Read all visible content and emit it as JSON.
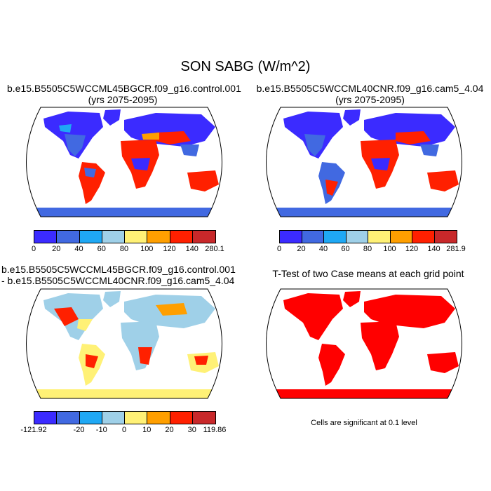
{
  "title": "SON SABG (W/m^2)",
  "panels": [
    {
      "title_line1": "b.e15.B5505C5WCCML45BGCR.f09_g16.control.001",
      "title_line2": "(yrs 2075-2095)",
      "colorbar": {
        "colors": [
          "#3b2bff",
          "#4169e1",
          "#1fa8f4",
          "#9fd0e8",
          "#fff176",
          "#ff9f00",
          "#ff2000",
          "#c8282a"
        ],
        "ticks": [
          "0",
          "20",
          "40",
          "60",
          "80",
          "100",
          "120",
          "140",
          "280.1"
        ]
      }
    },
    {
      "title_line1": "b.e15.B5505C5WCCML40CNR.f09_g16.cam5_4.04",
      "title_line2": "(yrs 2075-2095)",
      "colorbar": {
        "colors": [
          "#3b2bff",
          "#4169e1",
          "#1fa8f4",
          "#9fd0e8",
          "#fff176",
          "#ff9f00",
          "#ff2000",
          "#c8282a"
        ],
        "ticks": [
          "0",
          "20",
          "40",
          "60",
          "80",
          "100",
          "120",
          "140",
          "281.9"
        ]
      }
    },
    {
      "title_line1": "b.e15.B5505C5WCCML45BGCR.f09_g16.control.001",
      "title_line2": "- b.e15.B5505C5WCCML40CNR.f09_g16.cam5_4.04",
      "colorbar": {
        "colors": [
          "#3b2bff",
          "#4169e1",
          "#1fa8f4",
          "#9fd0e8",
          "#fff176",
          "#ff9f00",
          "#ff2000",
          "#c8282a"
        ],
        "ticks": [
          "-121.92",
          "",
          "-20",
          "-10",
          "0",
          "10",
          "20",
          "30",
          "119.86"
        ]
      }
    },
    {
      "title_line1": "T-Test of two Case means at each grid point",
      "note": "Cells are significant at 0.1 level"
    }
  ]
}
